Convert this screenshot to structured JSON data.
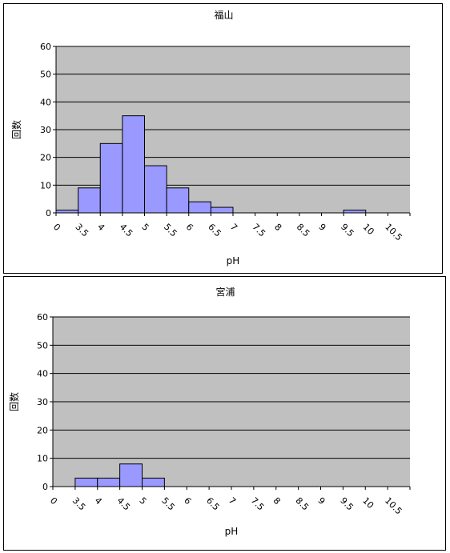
{
  "chart_data": [
    {
      "type": "bar",
      "title": "福山",
      "xlabel": "pH",
      "ylabel": "回数",
      "categories": [
        "0",
        "3.5",
        "4",
        "4.5",
        "5",
        "5.5",
        "6",
        "6.5",
        "7",
        "7.5",
        "8",
        "8.5",
        "9",
        "9.5",
        "10",
        "10.5"
      ],
      "values": [
        1,
        9,
        25,
        35,
        17,
        9,
        4,
        2,
        0,
        0,
        0,
        0,
        0,
        1,
        0,
        0
      ],
      "ylim": [
        0,
        60
      ],
      "yticks": [
        0,
        10,
        20,
        30,
        40,
        50,
        60
      ],
      "grid": true,
      "bar_color": "#9999ff",
      "plot_bg": "#c0c0c0"
    },
    {
      "type": "bar",
      "title": "宮浦",
      "xlabel": "pH",
      "ylabel": "回数",
      "categories": [
        "0",
        "3.5",
        "4",
        "4.5",
        "5",
        "5.5",
        "6",
        "6.5",
        "7",
        "7.5",
        "8",
        "8.5",
        "9",
        "9.5",
        "10",
        "10.5"
      ],
      "values": [
        0,
        3,
        3,
        8,
        3,
        0,
        0,
        0,
        0,
        0,
        0,
        0,
        0,
        0,
        0,
        0
      ],
      "ylim": [
        0,
        60
      ],
      "yticks": [
        0,
        10,
        20,
        30,
        40,
        50,
        60
      ],
      "grid": true,
      "bar_color": "#9999ff",
      "plot_bg": "#c0c0c0"
    }
  ]
}
